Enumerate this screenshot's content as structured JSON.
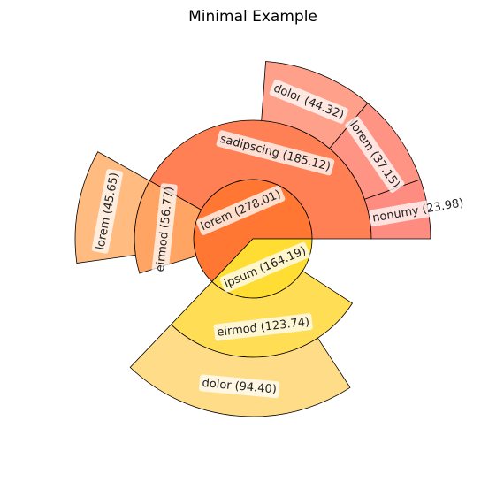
{
  "chart_data": {
    "type": "sunburst",
    "title": "Minimal Example",
    "nodes": [
      {
        "name": "lorem",
        "value": 278.01,
        "value_label": "(278.01)",
        "color": "#ff7733",
        "children": [
          {
            "name": "sadipscing",
            "value": 185.12,
            "value_label": "(185.12)",
            "color": "#ff8055",
            "children": [
              {
                "name": "nonumy",
                "value": 23.98,
                "value_label": "(23.98)",
                "color": "#ff8c80"
              },
              {
                "name": "lorem",
                "value": 37.15,
                "value_label": "(37.15)",
                "color": "#ff9484"
              },
              {
                "name": "dolor",
                "value": 44.32,
                "value_label": "(44.32)",
                "color": "#ffa08a"
              }
            ]
          },
          {
            "name": "eirmod",
            "value": 56.77,
            "value_label": "(56.77)",
            "color": "#ffa462",
            "children": [
              {
                "name": "lorem",
                "value": 45.65,
                "value_label": "(45.65)",
                "color": "#ffbb80"
              }
            ]
          }
        ]
      },
      {
        "name": "ipsum",
        "value": 164.19,
        "value_label": "(164.19)",
        "color": "#ffdd33",
        "children": [
          {
            "name": "eirmod",
            "value": 123.74,
            "value_label": "(123.74)",
            "color": "#ffdd55",
            "children": [
              {
                "name": "dolor",
                "value": 94.4,
                "value_label": "(94.40)",
                "color": "#ffdd88"
              }
            ]
          }
        ]
      }
    ]
  }
}
